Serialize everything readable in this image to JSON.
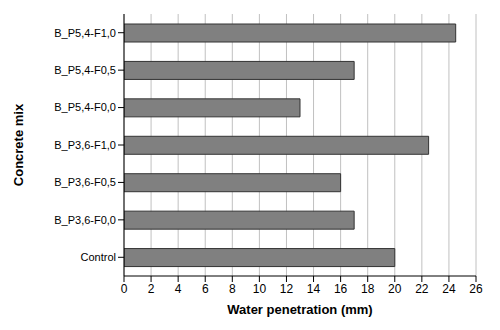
{
  "chart_data": {
    "type": "bar",
    "orientation": "horizontal",
    "x_label": "Water penetration (mm)",
    "y_label": "Concrete mix",
    "categories": [
      "B_P5,4-F1,0",
      "B_P5,4-F0,5",
      "B_P5,4-F0,0",
      "B_P3,6-F1,0",
      "B_P3,6-F0,5",
      "B_P3,6-F0,0",
      "Control"
    ],
    "values": [
      24.5,
      17,
      13,
      22.5,
      16,
      17,
      20
    ],
    "color": "#808080",
    "xlim": [
      0,
      26
    ],
    "xticks": [
      0,
      2,
      4,
      6,
      8,
      10,
      12,
      14,
      16,
      18,
      20,
      22,
      24,
      26
    ],
    "grid": true
  }
}
